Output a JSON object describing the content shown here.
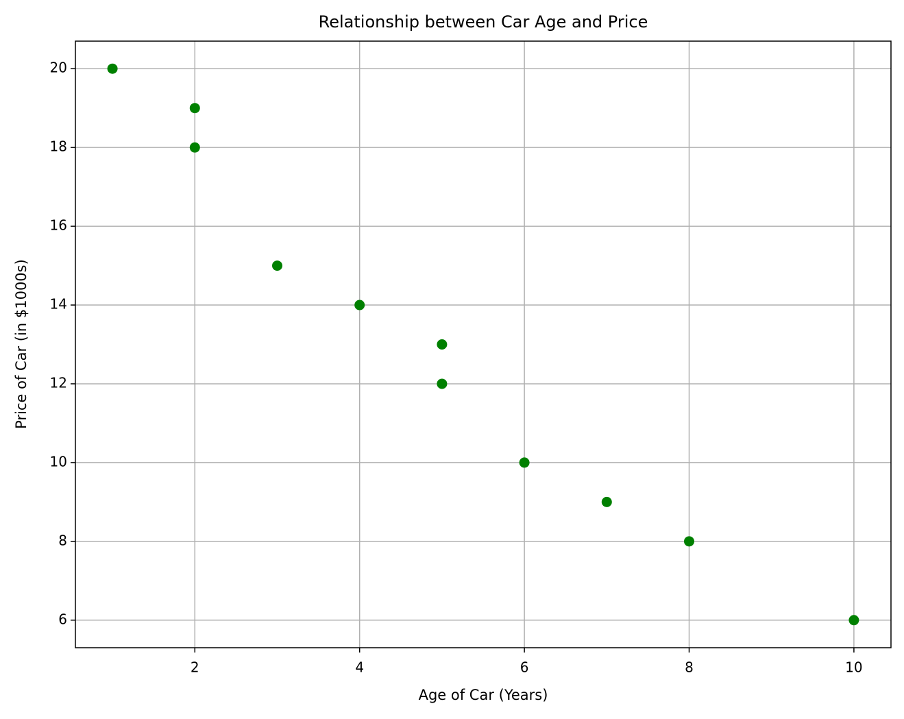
{
  "chart_data": {
    "type": "scatter",
    "title": "Relationship between Car Age and Price",
    "x_label": "Age of Car (Years)",
    "y_label": "Price of Car (in $1000s)",
    "x": [
      1,
      2,
      2,
      3,
      4,
      5,
      5,
      6,
      7,
      8,
      10
    ],
    "values": [
      20,
      19,
      18,
      15,
      14,
      13,
      12,
      10,
      9,
      8,
      6
    ],
    "color": "#008000",
    "xlim": [
      0.55,
      10.45
    ],
    "xticks": [
      2,
      4,
      6,
      8,
      10
    ],
    "ylim": [
      5.3,
      20.7
    ],
    "yticks": [
      6,
      8,
      10,
      12,
      14,
      16,
      18,
      20
    ],
    "grid": true
  }
}
